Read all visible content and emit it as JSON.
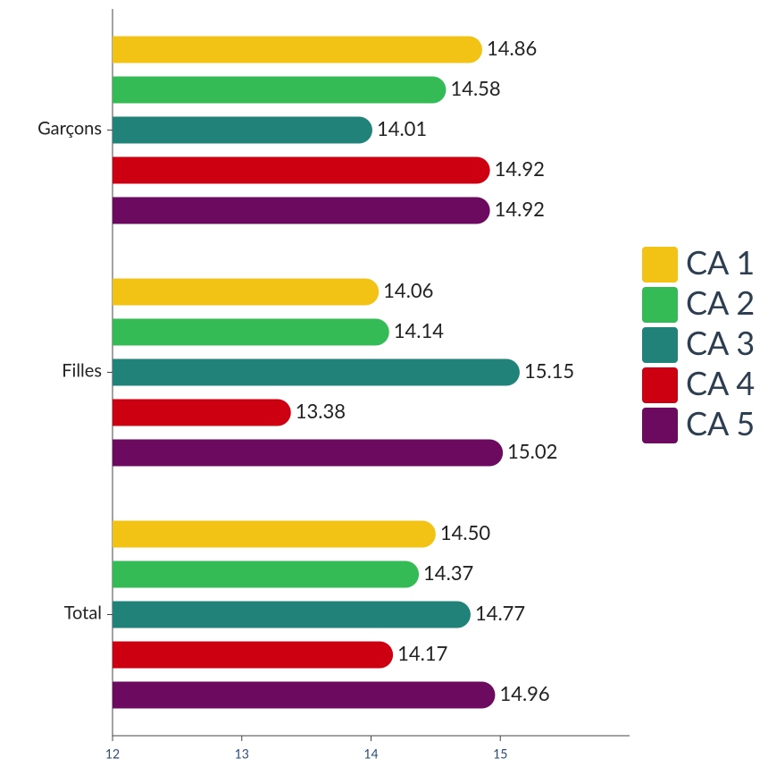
{
  "chart_data": {
    "type": "bar",
    "orientation": "horizontal",
    "categories": [
      "Garçons",
      "Filles",
      "Total"
    ],
    "series": [
      {
        "name": "CA 1",
        "color": "#f2c314",
        "values": [
          14.86,
          14.06,
          14.5
        ],
        "value_labels": [
          "14.86",
          "14.06",
          "14.50"
        ]
      },
      {
        "name": "CA 2",
        "color": "#34bb55",
        "values": [
          14.58,
          14.14,
          14.37
        ],
        "value_labels": [
          "14.58",
          "14.14",
          "14.37"
        ]
      },
      {
        "name": "CA 3",
        "color": "#21827a",
        "values": [
          14.01,
          15.15,
          14.77
        ],
        "value_labels": [
          "14.01",
          "15.15",
          "14.77"
        ]
      },
      {
        "name": "CA 4",
        "color": "#cc0011",
        "values": [
          14.92,
          13.38,
          14.17
        ],
        "value_labels": [
          "14.92",
          "13.38",
          "14.17"
        ]
      },
      {
        "name": "CA 5",
        "color": "#6b0a5e",
        "values": [
          14.92,
          15.02,
          14.96
        ],
        "value_labels": [
          "14.92",
          "15.02",
          "14.96"
        ]
      }
    ],
    "xlim": [
      12,
      16
    ],
    "xticks": [
      12,
      13,
      14,
      15
    ],
    "legend": "right"
  }
}
